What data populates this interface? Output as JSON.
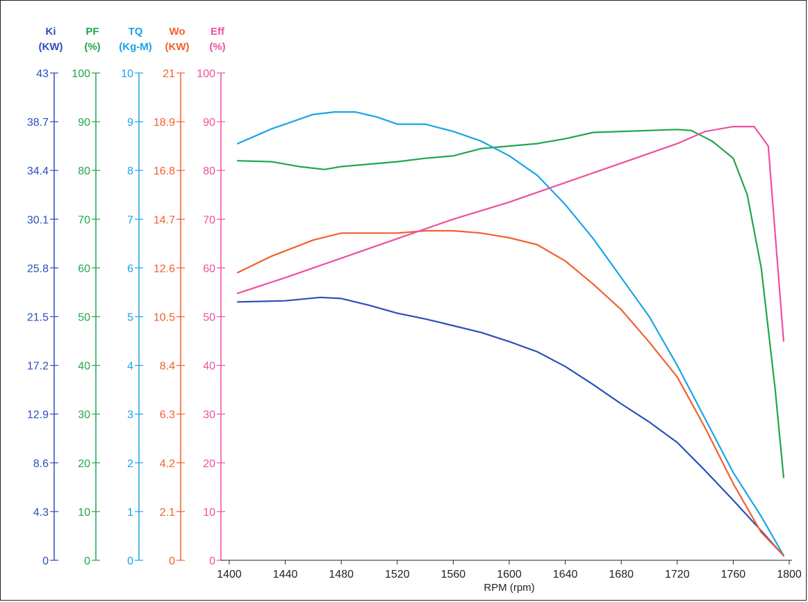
{
  "chart_data": {
    "type": "line",
    "xlabel": "RPM (rpm)",
    "xlim": [
      1400,
      1800
    ],
    "x_ticks": [
      "1400",
      "1440",
      "1480",
      "1520",
      "1560",
      "1600",
      "1640",
      "1680",
      "1720",
      "1760",
      "1800"
    ],
    "axes": [
      {
        "id": "ki",
        "name": "Ki",
        "unit": "(KW)",
        "color": "#2b4fb8",
        "ylim": [
          0,
          43
        ],
        "ticks": [
          "0",
          "4.3",
          "8.6",
          "12.9",
          "17.2",
          "21.5",
          "25.8",
          "30.1",
          "34.4",
          "38.7",
          "43"
        ]
      },
      {
        "id": "pf",
        "name": "PF",
        "unit": "(%)",
        "color": "#1fa64a",
        "ylim": [
          0,
          100
        ],
        "ticks": [
          "0",
          "10",
          "20",
          "30",
          "40",
          "50",
          "60",
          "70",
          "80",
          "90",
          "100"
        ]
      },
      {
        "id": "tq",
        "name": "TQ",
        "unit": "(Kg-M)",
        "color": "#1aa3e6",
        "ylim": [
          0,
          10
        ],
        "ticks": [
          "0",
          "1",
          "2",
          "3",
          "4",
          "5",
          "6",
          "7",
          "8",
          "9",
          "10"
        ]
      },
      {
        "id": "wo",
        "name": "Wo",
        "unit": "(KW)",
        "color": "#f2602e",
        "ylim": [
          0,
          21
        ],
        "ticks": [
          "0",
          "2.1",
          "4.2",
          "6.3",
          "8.4",
          "10.5",
          "12.6",
          "14.7",
          "16.8",
          "18.9",
          "21"
        ]
      },
      {
        "id": "eff",
        "name": "Eff",
        "unit": "(%)",
        "color": "#ee4fa0",
        "ylim": [
          0,
          100
        ],
        "ticks": [
          "0",
          "10",
          "20",
          "30",
          "40",
          "50",
          "60",
          "70",
          "80",
          "90",
          "100"
        ]
      }
    ],
    "series": [
      {
        "name": "Ki",
        "axis": "ki",
        "color": "#2b4fb8",
        "x": [
          1406,
          1440,
          1465,
          1480,
          1500,
          1520,
          1540,
          1560,
          1580,
          1600,
          1620,
          1640,
          1660,
          1680,
          1700,
          1720,
          1740,
          1760,
          1780,
          1796
        ],
        "y": [
          22.8,
          22.9,
          23.2,
          23.1,
          22.5,
          21.8,
          21.3,
          20.7,
          20.1,
          19.3,
          18.4,
          17.1,
          15.5,
          13.8,
          12.2,
          10.4,
          7.9,
          5.3,
          2.6,
          0.4
        ]
      },
      {
        "name": "PF",
        "axis": "pf",
        "color": "#1fa64a",
        "x": [
          1406,
          1430,
          1450,
          1468,
          1480,
          1500,
          1520,
          1540,
          1560,
          1580,
          1600,
          1620,
          1640,
          1660,
          1680,
          1700,
          1720,
          1730,
          1745,
          1760,
          1770,
          1780,
          1790,
          1796
        ],
        "y": [
          82,
          81.8,
          80.8,
          80.2,
          80.8,
          81.3,
          81.8,
          82.5,
          83,
          84.5,
          85,
          85.5,
          86.5,
          87.8,
          88,
          88.2,
          88.4,
          88.2,
          86,
          82.5,
          75,
          60,
          35,
          17
        ]
      },
      {
        "name": "TQ",
        "axis": "tq",
        "color": "#1aa3e6",
        "x": [
          1406,
          1430,
          1460,
          1475,
          1490,
          1505,
          1520,
          1540,
          1560,
          1580,
          1600,
          1620,
          1640,
          1660,
          1680,
          1700,
          1720,
          1740,
          1760,
          1780,
          1796
        ],
        "y": [
          8.55,
          8.85,
          9.15,
          9.2,
          9.2,
          9.1,
          8.95,
          8.95,
          8.8,
          8.6,
          8.3,
          7.9,
          7.3,
          6.6,
          5.8,
          5.0,
          4.0,
          2.9,
          1.8,
          0.9,
          0.1
        ]
      },
      {
        "name": "Wo",
        "axis": "wo",
        "color": "#f2602e",
        "x": [
          1406,
          1430,
          1460,
          1480,
          1500,
          1520,
          1540,
          1560,
          1580,
          1600,
          1620,
          1640,
          1660,
          1680,
          1700,
          1720,
          1740,
          1760,
          1780,
          1796
        ],
        "y": [
          12.4,
          13.1,
          13.8,
          14.1,
          14.1,
          14.1,
          14.2,
          14.2,
          14.1,
          13.9,
          13.6,
          12.9,
          11.9,
          10.8,
          9.4,
          7.9,
          5.7,
          3.3,
          1.2,
          0.2
        ]
      },
      {
        "name": "Eff",
        "axis": "eff",
        "color": "#ee4fa0",
        "x": [
          1406,
          1440,
          1480,
          1520,
          1560,
          1600,
          1640,
          1680,
          1720,
          1740,
          1760,
          1775,
          1785,
          1796
        ],
        "y": [
          54.8,
          58,
          62,
          66,
          70,
          73.5,
          77.5,
          81.5,
          85.5,
          88,
          89,
          89,
          85,
          45
        ]
      }
    ],
    "grid": false,
    "legend": "none"
  }
}
